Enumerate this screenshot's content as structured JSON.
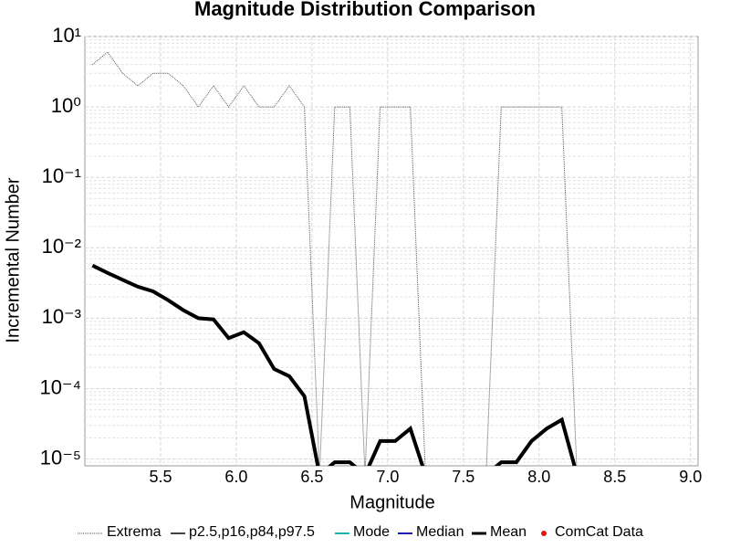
{
  "chart_data": {
    "type": "line",
    "title": "Magnitude Distribution Comparison",
    "x_label": "Magnitude",
    "y_label": "Incremental Number",
    "log_y": true,
    "grid": true,
    "legend": "bottom",
    "xlim": [
      5.0,
      9.05
    ],
    "ylim": [
      8e-06,
      10
    ],
    "xticks": [
      5.5,
      {
        "value": 6,
        "label": "6.0"
      },
      6.5,
      {
        "value": 7,
        "label": "7.0"
      },
      7.5,
      {
        "value": 8,
        "label": "8.0"
      },
      8.5,
      {
        "value": 9,
        "label": "9.0"
      }
    ],
    "yticks": [
      {
        "value": 1e-05,
        "label": "10⁻⁵"
      },
      {
        "value": 0.0001,
        "label": "10⁻⁴"
      },
      {
        "value": 0.001,
        "label": "10⁻³"
      },
      {
        "value": 0.01,
        "label": "10⁻²"
      },
      {
        "value": 0.1,
        "label": "10⁻¹"
      },
      {
        "value": 1,
        "label": "10⁰"
      },
      {
        "value": 10,
        "label": "10¹"
      }
    ],
    "x": [
      5.05,
      5.15,
      5.25,
      5.35,
      5.45,
      5.55,
      5.65,
      5.75,
      5.85,
      5.95,
      6.05,
      6.15,
      6.25,
      6.35,
      6.45,
      6.55,
      6.65,
      6.75,
      6.85,
      6.95,
      7.05,
      7.15,
      7.25,
      7.35,
      7.45,
      7.55,
      7.65,
      7.75,
      7.85,
      7.95,
      8.05,
      8.15,
      8.25,
      8.35,
      8.45,
      8.55,
      8.65,
      8.75,
      8.85,
      8.95
    ],
    "series": [
      {
        "name": "Extrema",
        "color": "#555555",
        "style": "dotted",
        "width": 1,
        "values": [
          4,
          6,
          3,
          2,
          3,
          3,
          2,
          1,
          2,
          1,
          2,
          1,
          1,
          2,
          1,
          0,
          1,
          1,
          0,
          1,
          1,
          1,
          0,
          0,
          0,
          0,
          0,
          1,
          1,
          1,
          1,
          1,
          0,
          0,
          0,
          0,
          0,
          0,
          0,
          0
        ]
      },
      {
        "name": "p2.5,p16,p84,p97.5",
        "color": "#000000",
        "style": "solid",
        "width": 1.5,
        "values": [
          null,
          null,
          null,
          null,
          null,
          null,
          null,
          null,
          null,
          null,
          null,
          null,
          null,
          null,
          null,
          null,
          null,
          null,
          null,
          null,
          null,
          null,
          null,
          null,
          null,
          null,
          null,
          null,
          null,
          null,
          null,
          null,
          null,
          null,
          null,
          null,
          null,
          null,
          null,
          null
        ]
      },
      {
        "name": "Mode",
        "color": "#20b2aa",
        "style": "solid",
        "width": 2,
        "values": [
          null,
          null,
          null,
          null,
          null,
          null,
          null,
          null,
          null,
          null,
          null,
          null,
          null,
          null,
          null,
          null,
          null,
          null,
          null,
          null,
          null,
          null,
          null,
          null,
          null,
          null,
          null,
          null,
          null,
          null,
          null,
          null,
          null,
          null,
          null,
          null,
          null,
          null,
          null,
          null
        ]
      },
      {
        "name": "Median",
        "color": "#1f1fa8",
        "style": "solid",
        "width": 2,
        "values": [
          null,
          null,
          null,
          null,
          null,
          null,
          null,
          null,
          null,
          null,
          null,
          null,
          null,
          null,
          null,
          null,
          null,
          null,
          null,
          null,
          null,
          null,
          null,
          null,
          null,
          null,
          null,
          null,
          null,
          null,
          null,
          null,
          null,
          null,
          null,
          null,
          null,
          null,
          null,
          null
        ]
      },
      {
        "name": "Mean",
        "color": "#000000",
        "style": "solid",
        "width": 4,
        "values": [
          0.0056,
          0.0044,
          0.0035,
          0.0028,
          0.0024,
          0.0018,
          0.0013,
          0.001,
          0.00096,
          0.00052,
          0.00063,
          0.00044,
          0.00019,
          0.00015,
          7.8e-05,
          0,
          9e-06,
          9e-06,
          0,
          1.8e-05,
          1.8e-05,
          2.7e-05,
          0,
          0,
          0,
          0,
          0,
          9e-06,
          9e-06,
          1.8e-05,
          2.7e-05,
          3.6e-05,
          0,
          0,
          0,
          0,
          0,
          0,
          0,
          0
        ]
      },
      {
        "name": "ComCat Data",
        "color": "#e8141c",
        "style": "marker",
        "width": 0,
        "values": [
          null,
          null,
          null,
          null,
          null,
          null,
          null,
          null,
          null,
          null,
          null,
          null,
          null,
          null,
          null,
          null,
          null,
          null,
          null,
          null,
          null,
          null,
          null,
          null,
          null,
          null,
          null,
          null,
          null,
          null,
          null,
          null,
          null,
          null,
          null,
          null,
          null,
          null,
          null,
          null
        ]
      }
    ]
  }
}
